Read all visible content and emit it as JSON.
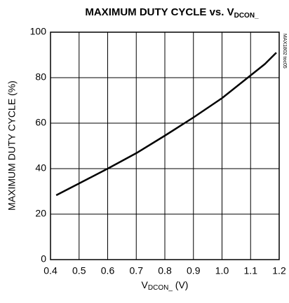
{
  "chart_data": {
    "type": "line",
    "title": {
      "main": "MAXIMUM DUTY CYCLE vs. V",
      "sub": "DCON_"
    },
    "x_label": {
      "main": "V",
      "sub": "DCON_",
      "suffix": " (V)"
    },
    "y_label": "MAXIMUM DUTY CYCLE (%)",
    "annotation": "MAX1802 toc05",
    "x": [
      0.42,
      0.5,
      0.6,
      0.7,
      0.8,
      0.9,
      1.0,
      1.1,
      1.15,
      1.19
    ],
    "values": [
      28.3,
      33.5,
      40,
      46.8,
      54.5,
      62.5,
      71,
      81,
      86,
      91
    ],
    "color": "#000000",
    "xlim": [
      0.4,
      1.2
    ],
    "xticks": [
      0.4,
      0.5,
      0.6,
      0.7,
      0.8,
      0.9,
      {
        "value": 1,
        "label": "1.0"
      },
      1.1,
      1.2
    ],
    "ylim": [
      0,
      100
    ],
    "yticks": [
      0,
      20,
      40,
      60,
      80,
      100
    ],
    "grid": true
  }
}
